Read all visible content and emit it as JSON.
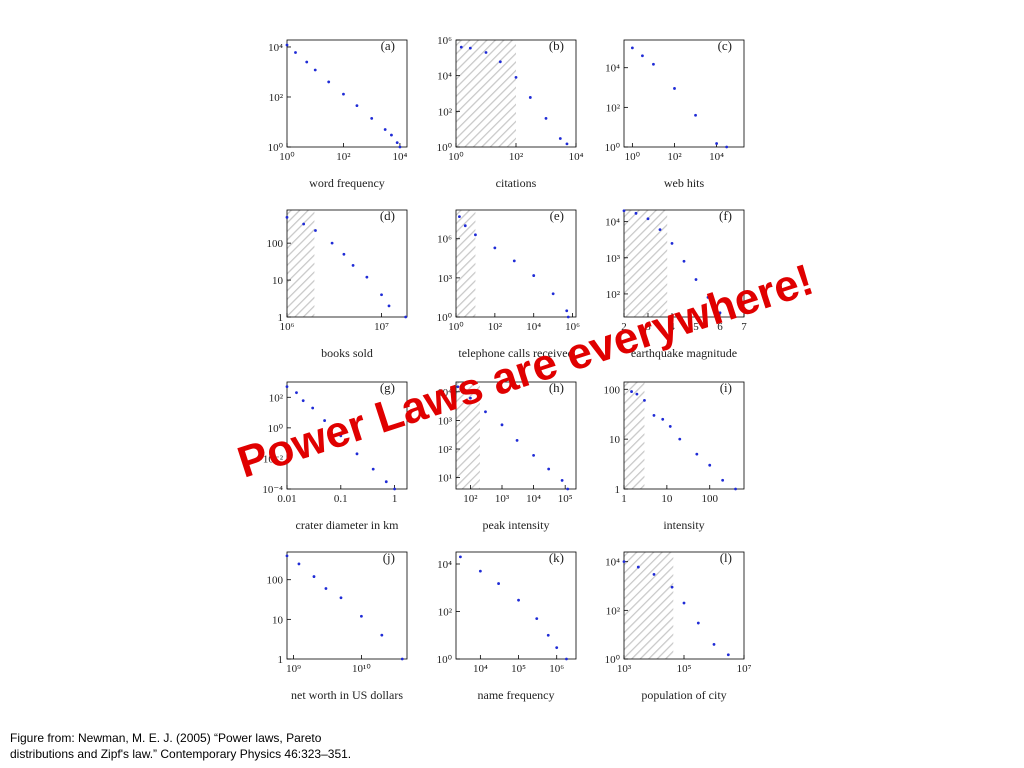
{
  "headline": "Power Laws are everywhere!",
  "caption": [
    "Figure from: Newman, M. E. J. (2005) “Power laws, Pareto",
    "distributions and Zipf's law.” Contemporary Physics 46:323–351."
  ],
  "chart_data": [
    {
      "type": "scatter",
      "label": "(a)",
      "xlabel": "word frequency",
      "xscale": "log",
      "yscale": "log",
      "color": "#1f2bd6",
      "x": [
        1,
        2,
        5,
        10,
        30,
        100,
        300,
        1000,
        3000,
        5000,
        8000,
        10000
      ],
      "values": [
        12000,
        6000,
        2500,
        1200,
        400,
        130,
        45,
        14,
        5,
        3,
        1.5,
        1
      ],
      "xlim": [
        1,
        17800
      ],
      "ylim": [
        1,
        19000
      ],
      "xticks": [
        {
          "value": 1,
          "label": "10⁰"
        },
        {
          "value": 100,
          "label": "10²"
        },
        {
          "value": 10000,
          "label": "10⁴"
        }
      ],
      "yticks": [
        {
          "value": 1,
          "label": "10⁰"
        },
        {
          "value": 100,
          "label": "10²"
        },
        {
          "value": 10000,
          "label": "10⁴"
        }
      ]
    },
    {
      "type": "scatter",
      "label": "(b)",
      "xlabel": "citations",
      "xscale": "log",
      "yscale": "log",
      "color": "#1f2bd6",
      "shaded_region": [
        1,
        100
      ],
      "x": [
        1.5,
        3,
        10,
        30,
        100,
        300,
        1000,
        3000,
        5000
      ],
      "values": [
        400000,
        350000,
        200000,
        60000,
        8000,
        600,
        40,
        3,
        1.5
      ],
      "xlim": [
        1,
        10000
      ],
      "ylim": [
        1,
        1000000
      ],
      "xticks": [
        {
          "value": 1,
          "label": "10⁰"
        },
        {
          "value": 100,
          "label": "10²"
        },
        {
          "value": 10000,
          "label": "10⁴"
        }
      ],
      "yticks": [
        {
          "value": 1,
          "label": "10⁰"
        },
        {
          "value": 100,
          "label": "10²"
        },
        {
          "value": 10000,
          "label": "10⁴"
        },
        {
          "value": 1000000,
          "label": "10⁶"
        }
      ]
    },
    {
      "type": "scatter",
      "label": "(c)",
      "xlabel": "web hits",
      "xscale": "log",
      "yscale": "log",
      "color": "#1f2bd6",
      "x": [
        1,
        3,
        10,
        100,
        1000,
        10000,
        30000
      ],
      "values": [
        100000,
        40000,
        15000,
        900,
        40,
        1.5,
        1
      ],
      "xlim": [
        0.4,
        200000
      ],
      "ylim": [
        1,
        250000
      ],
      "xticks": [
        {
          "value": 1,
          "label": "10⁰"
        },
        {
          "value": 100,
          "label": "10²"
        },
        {
          "value": 10000,
          "label": "10⁴"
        }
      ],
      "yticks": [
        {
          "value": 1,
          "label": "10⁰"
        },
        {
          "value": 100,
          "label": "10²"
        },
        {
          "value": 10000,
          "label": "10⁴"
        }
      ]
    },
    {
      "type": "scatter",
      "label": "(d)",
      "xlabel": "books sold",
      "xscale": "log",
      "yscale": "log",
      "color": "#1f2bd6",
      "shaded_region": [
        1000000,
        1950000
      ],
      "x": [
        1000000,
        1500000,
        2000000,
        3000000,
        4000000,
        5000000,
        7000000,
        10000000,
        12000000,
        18000000
      ],
      "values": [
        500,
        330,
        220,
        100,
        50,
        25,
        12,
        4,
        2,
        1
      ],
      "xlim": [
        1000000,
        18600000
      ],
      "ylim": [
        1,
        790
      ],
      "xticks": [
        {
          "value": 1000000,
          "label": "10⁶"
        },
        {
          "value": 10000000,
          "label": "10⁷"
        }
      ],
      "yticks": [
        1,
        10,
        100
      ]
    },
    {
      "type": "scatter",
      "label": "(e)",
      "xlabel": "telephone calls received",
      "xscale": "log",
      "yscale": "log",
      "color": "#1f2bd6",
      "shaded_region": [
        1,
        10
      ],
      "x": [
        1.5,
        3,
        10,
        100,
        1000,
        10000,
        100000,
        500000,
        600000
      ],
      "values": [
        50000000,
        10000000,
        2000000,
        200000,
        20000,
        1500,
        60,
        3,
        1
      ],
      "xlim": [
        1,
        1500000
      ],
      "ylim": [
        1,
        160000000
      ],
      "xticks": [
        {
          "value": 1,
          "label": "10⁰"
        },
        {
          "value": 100,
          "label": "10²"
        },
        {
          "value": 10000,
          "label": "10⁴"
        },
        {
          "value": 1000000,
          "label": "10⁶"
        }
      ],
      "yticks": [
        {
          "value": 1,
          "label": "10⁰"
        },
        {
          "value": 1000,
          "label": "10³"
        },
        {
          "value": 1000000,
          "label": "10⁶"
        }
      ]
    },
    {
      "type": "scatter",
      "label": "(f)",
      "xlabel": "earthquake magnitude",
      "xscale": "linear",
      "yscale": "log",
      "color": "#1f2bd6",
      "shaded_region": [
        2,
        3.8
      ],
      "x": [
        2,
        2.5,
        3,
        3.5,
        4,
        4.5,
        5,
        5.5,
        6,
        6.5
      ],
      "values": [
        20000,
        17000,
        12000,
        6000,
        2500,
        800,
        250,
        80,
        30,
        25
      ],
      "xlim": [
        2,
        7
      ],
      "ylim": [
        23,
        21000
      ],
      "xticks": [
        2,
        3,
        4,
        5,
        6,
        7
      ],
      "yticks": [
        {
          "value": 100,
          "label": "10²"
        },
        {
          "value": 1000,
          "label": "10³"
        },
        {
          "value": 10000,
          "label": "10⁴"
        }
      ]
    },
    {
      "type": "scatter",
      "label": "(g)",
      "xlabel": "crater diameter in km",
      "xscale": "log",
      "yscale": "log",
      "color": "#1f2bd6",
      "x": [
        0.01,
        0.015,
        0.02,
        0.03,
        0.05,
        0.1,
        0.2,
        0.4,
        0.7,
        1
      ],
      "values": [
        500,
        200,
        60,
        20,
        3,
        0.3,
        0.02,
        0.002,
        0.0003,
        0.0001
      ],
      "xlim": [
        0.01,
        1.7
      ],
      "ylim": [
        0.0001,
        1000
      ],
      "xticks": [
        0.01,
        0.1,
        1
      ],
      "yticks": [
        {
          "value": 0.0001,
          "label": "10⁻⁴"
        },
        {
          "value": 0.01,
          "label": "10⁻²"
        },
        {
          "value": 1,
          "label": "10⁰"
        },
        {
          "value": 100,
          "label": "10²"
        }
      ]
    },
    {
      "type": "scatter",
      "label": "(h)",
      "xlabel": "peak intensity",
      "xscale": "log",
      "yscale": "log",
      "color": "#1f2bd6",
      "shaded_region": [
        35,
        200
      ],
      "x": [
        40,
        100,
        300,
        1000,
        3000,
        10000,
        30000,
        80000,
        120000
      ],
      "values": [
        15000,
        6000,
        2000,
        700,
        200,
        60,
        20,
        8,
        4
      ],
      "xlim": [
        35,
        220000
      ],
      "ylim": [
        4,
        22000
      ],
      "xticks": [
        {
          "value": 100,
          "label": "10²"
        },
        {
          "value": 1000,
          "label": "10³"
        },
        {
          "value": 10000,
          "label": "10⁴"
        },
        {
          "value": 100000,
          "label": "10⁵"
        }
      ],
      "yticks": [
        {
          "value": 10,
          "label": "10¹"
        },
        {
          "value": 100,
          "label": "10²"
        },
        {
          "value": 1000,
          "label": "10³"
        },
        {
          "value": 10000,
          "label": "10⁴"
        }
      ]
    },
    {
      "type": "scatter",
      "label": "(i)",
      "xlabel": "intensity",
      "xscale": "log",
      "yscale": "log",
      "color": "#1f2bd6",
      "shaded_region": [
        1,
        3
      ],
      "x": [
        1.5,
        2,
        3,
        5,
        8,
        12,
        20,
        50,
        100,
        200,
        400
      ],
      "values": [
        90,
        80,
        60,
        30,
        25,
        18,
        10,
        5,
        3,
        1.5,
        1
      ],
      "xlim": [
        1,
        630
      ],
      "ylim": [
        1,
        140
      ],
      "xticks": [
        1,
        10,
        100
      ],
      "yticks": [
        1,
        10,
        100
      ]
    },
    {
      "type": "scatter",
      "label": "(j)",
      "xlabel": "net worth in US dollars",
      "xscale": "log",
      "yscale": "log",
      "color": "#1f2bd6",
      "x": [
        800000000,
        1200000000,
        2000000000,
        3000000000,
        5000000000,
        10000000000,
        20000000000,
        40000000000
      ],
      "values": [
        400,
        250,
        120,
        60,
        35,
        12,
        4,
        1
      ],
      "xlim": [
        800000000,
        47000000000
      ],
      "ylim": [
        1,
        500
      ],
      "xticks": [
        {
          "value": 1000000000,
          "label": "10⁹"
        },
        {
          "value": 10000000000,
          "label": "10¹⁰"
        }
      ],
      "yticks": [
        1,
        10,
        100
      ]
    },
    {
      "type": "scatter",
      "label": "(k)",
      "xlabel": "name frequency",
      "xscale": "log",
      "yscale": "log",
      "color": "#1f2bd6",
      "x": [
        3000,
        10000,
        30000,
        100000,
        300000,
        600000,
        1000000,
        1800000
      ],
      "values": [
        20000,
        5000,
        1500,
        300,
        50,
        10,
        3,
        1
      ],
      "xlim": [
        2300,
        3200000
      ],
      "ylim": [
        1,
        32000
      ],
      "xticks": [
        {
          "value": 10000,
          "label": "10⁴"
        },
        {
          "value": 100000,
          "label": "10⁵"
        },
        {
          "value": 1000000,
          "label": "10⁶"
        }
      ],
      "yticks": [
        {
          "value": 1,
          "label": "10⁰"
        },
        {
          "value": 100,
          "label": "10²"
        },
        {
          "value": 10000,
          "label": "10⁴"
        }
      ]
    },
    {
      "type": "scatter",
      "label": "(l)",
      "xlabel": "population of city",
      "xscale": "log",
      "yscale": "log",
      "color": "#1f2bd6",
      "shaded_region": [
        1000,
        44000
      ],
      "x": [
        1000,
        3000,
        10000,
        40000,
        100000,
        300000,
        1000000,
        3000000
      ],
      "values": [
        10000,
        6000,
        3000,
        900,
        200,
        30,
        4,
        1.5
      ],
      "xlim": [
        1000,
        10000000
      ],
      "ylim": [
        1,
        25000
      ],
      "xticks": [
        {
          "value": 1000,
          "label": "10³"
        },
        {
          "value": 100000,
          "label": "10⁵"
        },
        {
          "value": 10000000,
          "label": "10⁷"
        }
      ],
      "yticks": [
        {
          "value": 1,
          "label": "10⁰"
        },
        {
          "value": 100,
          "label": "10²"
        },
        {
          "value": 10000,
          "label": "10⁴"
        }
      ]
    }
  ]
}
